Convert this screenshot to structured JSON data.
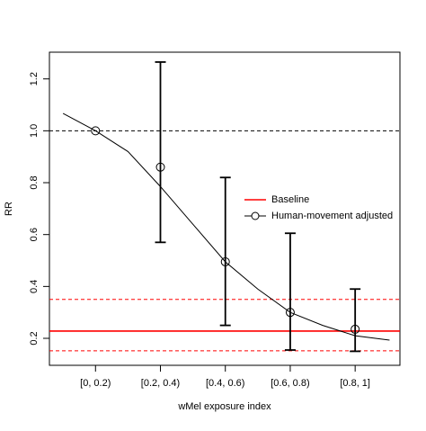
{
  "chart_data": {
    "type": "line",
    "x_label": "wMel exposure index",
    "y_label": "RR",
    "x": [
      1,
      2,
      3,
      4,
      5
    ],
    "xlim": [
      0.29,
      5.69
    ],
    "ylim": [
      0.096,
      1.303
    ],
    "xticks": [
      {
        "value": 1,
        "label": "[0, 0.2)"
      },
      {
        "value": 2,
        "label": "[0.2, 0.4)"
      },
      {
        "value": 3,
        "label": "[0.4, 0.6)"
      },
      {
        "value": 4,
        "label": "[0.6, 0.8)"
      },
      {
        "value": 5,
        "label": "[0.8, 1]"
      }
    ],
    "yticks": [
      0.2,
      0.4,
      0.6,
      0.8,
      {
        "value": 1,
        "label": "1.0"
      },
      1.2
    ],
    "reference_line": 1.0,
    "legend_position": "right",
    "baseline": {
      "name": "Baseline",
      "color": "#ff0000",
      "value": 0.228,
      "lower": 0.152,
      "upper": 0.35
    },
    "series": [
      {
        "name": "Human-movement adjusted",
        "color": "#000000",
        "values": [
          1.0,
          0.86,
          0.495,
          0.3,
          0.235
        ],
        "lower": [
          null,
          0.57,
          0.25,
          0.155,
          0.15
        ],
        "upper": [
          null,
          1.265,
          0.82,
          0.605,
          0.39
        ],
        "fit_x": [
          0.5,
          1,
          1.5,
          2,
          2.5,
          3,
          3.5,
          4,
          4.5,
          5,
          5.53
        ],
        "fit_values": [
          1.067,
          1.0,
          0.92,
          0.785,
          0.64,
          0.495,
          0.39,
          0.3,
          0.25,
          0.21,
          0.193
        ]
      }
    ]
  }
}
